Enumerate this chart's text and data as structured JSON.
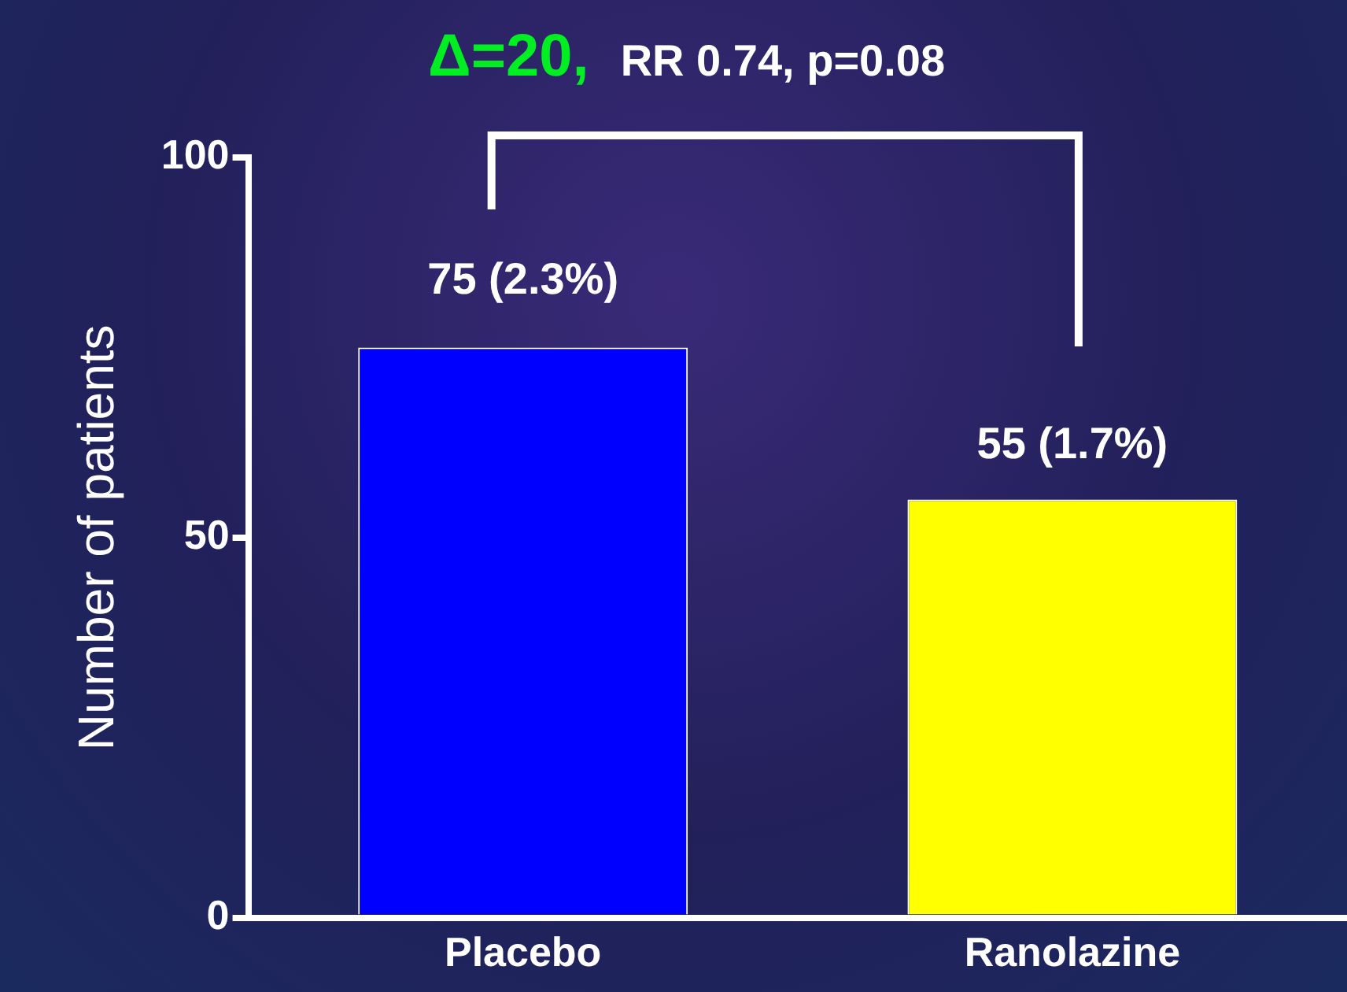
{
  "chart_data": {
    "type": "bar",
    "categories": [
      "Placebo",
      "Ranolazine"
    ],
    "values": [
      75,
      55
    ],
    "colors": [
      "#0000ff",
      "#ffff00"
    ],
    "value_labels": [
      "75 (2.3%)",
      "55 (1.7%)"
    ],
    "ylabel": "Number of patients",
    "ylim": [
      0,
      100
    ],
    "yticks": [
      0,
      50,
      100
    ],
    "grid": false,
    "legend": false,
    "annotations": [
      "Δ=20,",
      "RR 0.74, p=0.08"
    ]
  }
}
